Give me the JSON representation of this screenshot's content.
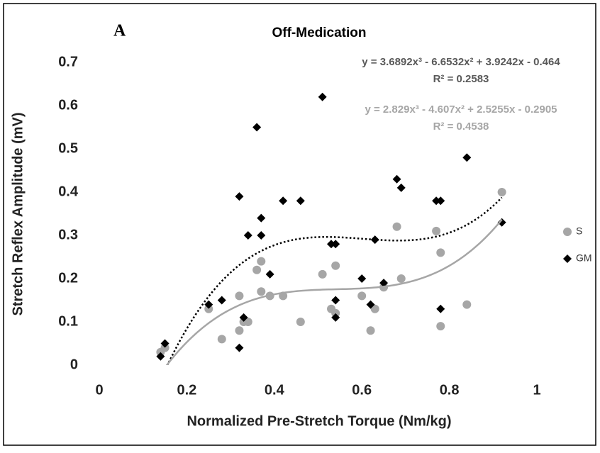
{
  "chart_data": {
    "type": "scatter",
    "panel_label": "A",
    "title": "Off-Medication",
    "x_label": "Normalized Pre-Stretch Torque (Nm/kg)",
    "y_label": "Stretch Reflex Amplitude (mV)",
    "xlim": [
      0,
      1
    ],
    "xticks": [
      0,
      0.2,
      0.4,
      0.6,
      0.8,
      1
    ],
    "ylim": [
      0,
      0.7
    ],
    "yticks": [
      0,
      0.1,
      0.2,
      0.3,
      0.4,
      0.5,
      0.6,
      0.7
    ],
    "legend": "right",
    "series": [
      {
        "name": "S",
        "color": "#a6a6a6",
        "marker": "circle",
        "x": [
          0.14,
          0.15,
          0.25,
          0.28,
          0.32,
          0.32,
          0.33,
          0.34,
          0.36,
          0.37,
          0.37,
          0.39,
          0.42,
          0.46,
          0.51,
          0.53,
          0.54,
          0.54,
          0.6,
          0.62,
          0.63,
          0.65,
          0.68,
          0.69,
          0.77,
          0.78,
          0.78,
          0.84,
          0.92
        ],
        "values": [
          0.03,
          0.04,
          0.13,
          0.06,
          0.16,
          0.08,
          0.1,
          0.1,
          0.22,
          0.24,
          0.17,
          0.16,
          0.16,
          0.1,
          0.21,
          0.13,
          0.23,
          0.12,
          0.16,
          0.08,
          0.13,
          0.18,
          0.32,
          0.2,
          0.31,
          0.26,
          0.09,
          0.14,
          0.4
        ]
      },
      {
        "name": "GM",
        "color": "#000000",
        "marker": "diamond",
        "x": [
          0.14,
          0.15,
          0.25,
          0.28,
          0.32,
          0.32,
          0.33,
          0.34,
          0.36,
          0.37,
          0.37,
          0.39,
          0.42,
          0.46,
          0.51,
          0.53,
          0.54,
          0.54,
          0.54,
          0.6,
          0.62,
          0.63,
          0.65,
          0.68,
          0.69,
          0.77,
          0.78,
          0.78,
          0.84,
          0.92
        ],
        "values": [
          0.02,
          0.05,
          0.14,
          0.15,
          0.39,
          0.04,
          0.11,
          0.3,
          0.55,
          0.34,
          0.3,
          0.21,
          0.38,
          0.38,
          0.62,
          0.28,
          0.28,
          0.11,
          0.15,
          0.2,
          0.14,
          0.29,
          0.19,
          0.43,
          0.41,
          0.38,
          0.38,
          0.13,
          0.48,
          0.33
        ]
      }
    ],
    "trendlines": [
      {
        "series": "GM",
        "color": "#000000",
        "style": "dotted",
        "label_color": "#595959",
        "equation": "y = 3.6892x³ - 6.6532x² + 3.9242x - 0.464",
        "r_squared": "R² = 0.2583",
        "coefficients": [
          3.6892,
          -6.6532,
          3.9242,
          -0.464
        ]
      },
      {
        "series": "S",
        "color": "#a6a6a6",
        "style": "solid",
        "label_color": "#a6a6a6",
        "equation": "y = 2.829x³ - 4.607x² + 2.5255x - 0.2905",
        "r_squared": "R² = 0.4538",
        "coefficients": [
          2.829,
          -4.607,
          2.5255,
          -0.2905
        ]
      }
    ]
  }
}
